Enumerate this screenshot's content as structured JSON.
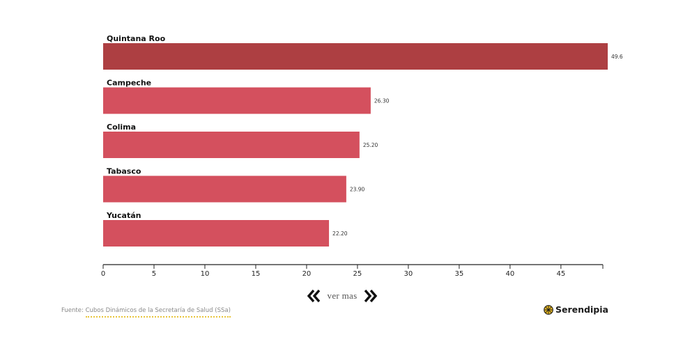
{
  "chart_data": {
    "type": "bar",
    "orientation": "horizontal",
    "categories": [
      "Quintana Roo",
      "Campeche",
      "Colima",
      "Tabasco",
      "Yucatán"
    ],
    "values": [
      49.6,
      26.3,
      25.2,
      23.9,
      22.2
    ],
    "value_labels": [
      "49.6",
      "26.30",
      "25.20",
      "23.90",
      "22.20"
    ],
    "bar_colors": [
      "#ad3f42",
      "#d4505e",
      "#d4505e",
      "#d4505e",
      "#d4505e"
    ],
    "xticks": [
      0,
      5,
      10,
      15,
      20,
      25,
      30,
      35,
      40,
      45
    ],
    "xlim": [
      0,
      49.6
    ],
    "grid": false
  },
  "nav": {
    "label": "ver mas",
    "prev_icon": "double-chevron-left-icon",
    "next_icon": "double-chevron-right-icon"
  },
  "footer": {
    "source_prefix": "Fuente: ",
    "source_link": "Cubos Dinámicos de la Secretaría de Salud (SSa)",
    "brand_name": "Serendipia",
    "brand_icon": "serendipia-logo-icon",
    "link_underline_color": "#e8c53a"
  }
}
